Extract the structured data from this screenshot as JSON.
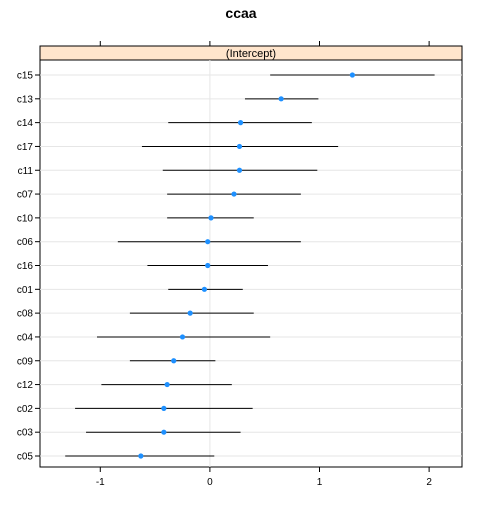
{
  "chart_data": {
    "type": "dotplot",
    "title": "ccaa",
    "panel_label": "(Intercept)",
    "categories": [
      "c15",
      "c13",
      "c14",
      "c17",
      "c11",
      "c07",
      "c10",
      "c06",
      "c16",
      "c01",
      "c08",
      "c04",
      "c09",
      "c12",
      "c02",
      "c03",
      "c05"
    ],
    "estimates": [
      1.3,
      0.65,
      0.28,
      0.27,
      0.27,
      0.22,
      0.01,
      -0.02,
      -0.02,
      -0.05,
      -0.18,
      -0.25,
      -0.33,
      -0.39,
      -0.42,
      -0.42,
      -0.63
    ],
    "lower": [
      0.55,
      0.32,
      -0.38,
      -0.62,
      -0.43,
      -0.39,
      -0.39,
      -0.84,
      -0.57,
      -0.38,
      -0.73,
      -1.03,
      -0.73,
      -0.99,
      -1.23,
      -1.13,
      -1.32
    ],
    "upper": [
      2.05,
      0.99,
      0.93,
      1.17,
      0.98,
      0.83,
      0.4,
      0.83,
      0.53,
      0.3,
      0.4,
      0.55,
      0.05,
      0.2,
      0.39,
      0.28,
      0.04
    ],
    "x_ticks": [
      -1,
      0,
      1,
      2
    ],
    "xlim": [
      -1.55,
      2.3
    ],
    "grid": true,
    "colors": {
      "point": "#1e90ff",
      "interval": "#000000",
      "strip": "#ffe5cc",
      "grid": "#e6e6e6"
    }
  }
}
